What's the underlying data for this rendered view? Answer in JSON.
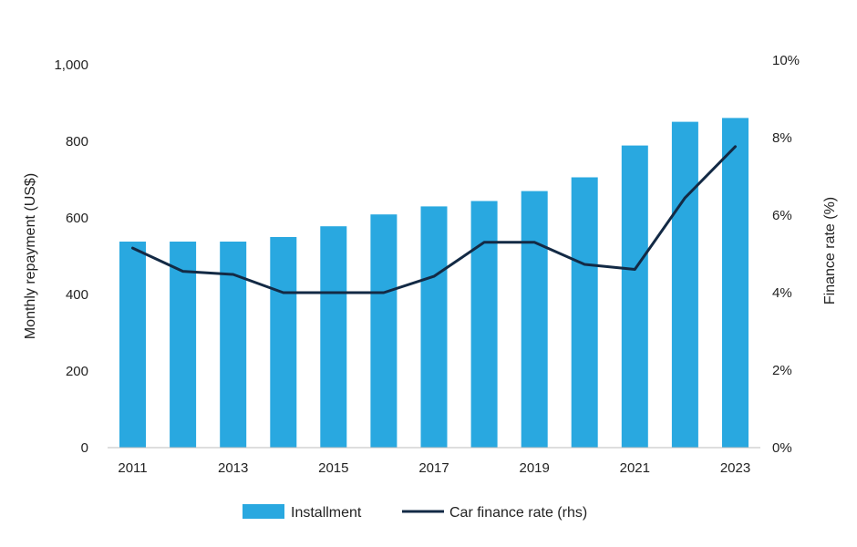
{
  "chart_data": {
    "type": "bar",
    "categories": [
      "2011",
      "2012",
      "2013",
      "2014",
      "2015",
      "2016",
      "2017",
      "2018",
      "2019",
      "2020",
      "2021",
      "2022",
      "2023"
    ],
    "x_tick_labels": [
      "2011",
      "2013",
      "2015",
      "2017",
      "2019",
      "2021",
      "2023"
    ],
    "series": [
      {
        "name": "Installment",
        "type": "bar",
        "axis": "left",
        "color": "#29a8e0",
        "values": [
          538,
          538,
          538,
          550,
          578,
          609,
          630,
          644,
          670,
          706,
          789,
          851,
          861
        ]
      },
      {
        "name": "Car finance rate (rhs)",
        "type": "line",
        "axis": "right",
        "color": "#132a45",
        "values": [
          5.15,
          4.55,
          4.47,
          4.0,
          4.0,
          4.0,
          4.42,
          5.3,
          5.3,
          4.73,
          4.6,
          6.45,
          7.77
        ]
      }
    ],
    "ylabel": "Monthly repayment (US$)",
    "ylim": [
      0,
      1000
    ],
    "y_ticks": [
      "0",
      "200",
      "400",
      "600",
      "800",
      "1,000"
    ],
    "y2label": "Finance rate (%)",
    "y2lim": [
      0,
      10
    ],
    "y2_ticks": [
      "0%",
      "2%",
      "4%",
      "6%",
      "8%",
      "10%"
    ],
    "grid": false,
    "legend_position": "bottom-center"
  }
}
